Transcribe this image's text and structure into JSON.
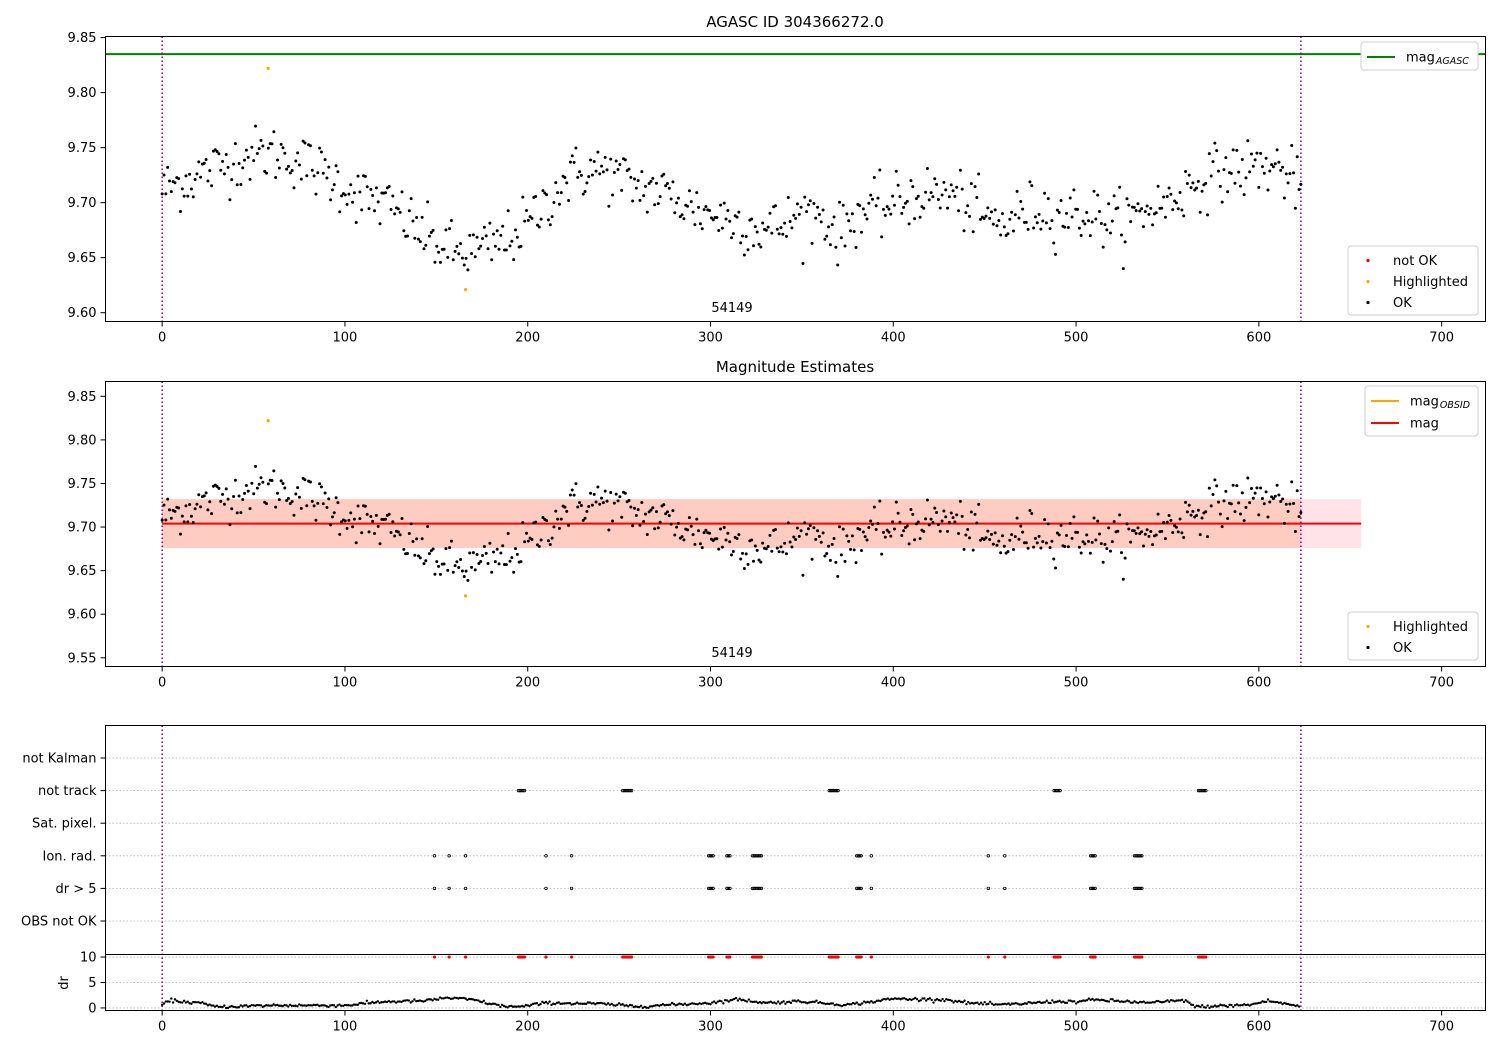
{
  "figure": {
    "panels": [
      {
        "id": "p1",
        "title": "AGASC ID 304366272.0",
        "obsid_label": "54149"
      },
      {
        "id": "p2",
        "title": "Magnitude Estimates",
        "obsid_label": "54149"
      },
      {
        "id": "p3",
        "title": ""
      }
    ],
    "legends": {
      "p1_line": [
        {
          "label": "mag",
          "sub": "AGASC",
          "color": "#008000",
          "kind": "line"
        }
      ],
      "p1_points": [
        {
          "label": "not OK",
          "color": "#ff0000",
          "kind": "dot"
        },
        {
          "label": "Highlighted",
          "color": "#ffa500",
          "kind": "dot"
        },
        {
          "label": "OK",
          "color": "#000000",
          "kind": "dot"
        }
      ],
      "p2_line": [
        {
          "label": "mag",
          "sub": "OBSID",
          "color": "#ffa500",
          "kind": "line"
        },
        {
          "label": "mag",
          "sub": "",
          "color": "#ff0000",
          "kind": "line"
        }
      ],
      "p2_points": [
        {
          "label": "Highlighted",
          "color": "#ffa500",
          "kind": "dot"
        },
        {
          "label": "OK",
          "color": "#000000",
          "kind": "dot"
        }
      ]
    },
    "colors": {
      "ok": "#000000",
      "highlighted": "#ffa500",
      "not_ok": "#ff0000",
      "mag_agasc": "#008000",
      "mag_obsid": "#ffa500",
      "mag": "#ff0000",
      "band_outer": "#ffc0cb",
      "band_inner": "#ffa07a",
      "obs_bounds": "#800080"
    }
  },
  "chart_data": [
    {
      "type": "scatter",
      "panel": "p1",
      "title": "AGASC ID 304366272.0",
      "xlim": [
        -31,
        724
      ],
      "ylim": [
        9.592,
        9.851
      ],
      "xticks": [
        0,
        100,
        200,
        300,
        400,
        500,
        600,
        700
      ],
      "yticks": [
        9.6,
        9.65,
        9.7,
        9.75,
        9.8,
        9.85
      ],
      "mag_agasc": 9.835,
      "obs_bounds": [
        0,
        623
      ],
      "obsid_label": "54149",
      "highlighted": [
        {
          "x": 58,
          "y": 9.822
        },
        {
          "x": 166,
          "y": 9.621
        }
      ],
      "ok_trend": {
        "x_start": 0,
        "x_end": 623,
        "n_points": 623,
        "knots": [
          [
            0,
            9.712
          ],
          [
            15,
            9.722
          ],
          [
            30,
            9.732
          ],
          [
            45,
            9.742
          ],
          [
            60,
            9.745
          ],
          [
            75,
            9.738
          ],
          [
            90,
            9.725
          ],
          [
            100,
            9.715
          ],
          [
            110,
            9.705
          ],
          [
            120,
            9.7
          ],
          [
            130,
            9.69
          ],
          [
            140,
            9.675
          ],
          [
            150,
            9.662
          ],
          [
            160,
            9.655
          ],
          [
            170,
            9.655
          ],
          [
            180,
            9.66
          ],
          [
            190,
            9.668
          ],
          [
            200,
            9.68
          ],
          [
            210,
            9.7
          ],
          [
            220,
            9.72
          ],
          [
            230,
            9.728
          ],
          [
            240,
            9.73
          ],
          [
            250,
            9.722
          ],
          [
            260,
            9.715
          ],
          [
            270,
            9.712
          ],
          [
            280,
            9.705
          ],
          [
            290,
            9.695
          ],
          [
            300,
            9.69
          ],
          [
            310,
            9.685
          ],
          [
            320,
            9.68
          ],
          [
            330,
            9.675
          ],
          [
            340,
            9.68
          ],
          [
            350,
            9.69
          ],
          [
            360,
            9.69
          ],
          [
            370,
            9.67
          ],
          [
            380,
            9.69
          ],
          [
            390,
            9.693
          ],
          [
            400,
            9.698
          ],
          [
            410,
            9.705
          ],
          [
            420,
            9.708
          ],
          [
            430,
            9.707
          ],
          [
            440,
            9.7
          ],
          [
            450,
            9.685
          ],
          [
            460,
            9.68
          ],
          [
            470,
            9.69
          ],
          [
            480,
            9.695
          ],
          [
            490,
            9.69
          ],
          [
            500,
            9.69
          ],
          [
            510,
            9.688
          ],
          [
            520,
            9.683
          ],
          [
            530,
            9.685
          ],
          [
            540,
            9.695
          ],
          [
            550,
            9.7
          ],
          [
            560,
            9.712
          ],
          [
            570,
            9.722
          ],
          [
            580,
            9.728
          ],
          [
            590,
            9.73
          ],
          [
            600,
            9.733
          ],
          [
            610,
            9.732
          ],
          [
            623,
            9.715
          ]
        ],
        "scatter": 0.013
      }
    },
    {
      "type": "scatter",
      "panel": "p2",
      "title": "Magnitude Estimates",
      "xlim": [
        -31,
        724
      ],
      "ylim": [
        9.54,
        9.867
      ],
      "xticks": [
        0,
        100,
        200,
        300,
        400,
        500,
        600,
        700
      ],
      "yticks": [
        9.55,
        9.6,
        9.65,
        9.7,
        9.75,
        9.8,
        9.85
      ],
      "mag": 9.704,
      "mag_obsid": 9.704,
      "band_outer": [
        9.676,
        9.732
      ],
      "band_inner": [
        9.676,
        9.732
      ],
      "band_x": [
        0,
        656
      ],
      "obs_bounds": [
        0,
        623
      ],
      "obsid_label": "54149",
      "highlighted": [
        {
          "x": 58,
          "y": 9.822
        },
        {
          "x": 166,
          "y": 9.621
        }
      ],
      "ok_trend": "same as panel p1"
    },
    {
      "type": "scatter",
      "panel": "p3",
      "xlim": [
        -31,
        724
      ],
      "xticks": [
        0,
        100,
        200,
        300,
        400,
        500,
        600,
        700
      ],
      "flag_categories": [
        "not Kalman",
        "not track",
        "Sat. pixel.",
        "Ion. rad.",
        "dr > 5",
        "OBS not OK"
      ],
      "flags": {
        "not Kalman": [],
        "not track": [
          [
            195,
            199
          ],
          [
            252,
            257
          ],
          [
            365,
            370
          ],
          [
            488,
            492
          ],
          [
            567,
            571
          ]
        ],
        "Sat. pixel.": [],
        "Ion. rad.": [
          [
            149,
            149
          ],
          [
            157,
            157
          ],
          [
            166,
            166
          ],
          [
            210,
            210
          ],
          [
            224,
            224
          ],
          [
            299,
            302
          ],
          [
            309,
            311
          ],
          [
            323,
            328
          ],
          [
            380,
            383
          ],
          [
            388,
            388
          ],
          [
            452,
            452
          ],
          [
            461,
            461
          ],
          [
            508,
            511
          ],
          [
            532,
            536
          ]
        ],
        "dr > 5": [
          [
            149,
            149
          ],
          [
            157,
            157
          ],
          [
            166,
            166
          ],
          [
            210,
            210
          ],
          [
            224,
            224
          ],
          [
            299,
            302
          ],
          [
            309,
            311
          ],
          [
            323,
            328
          ],
          [
            380,
            383
          ],
          [
            388,
            388
          ],
          [
            452,
            452
          ],
          [
            461,
            461
          ],
          [
            508,
            511
          ],
          [
            532,
            536
          ]
        ],
        "OBS not OK": []
      },
      "dr": {
        "ylabel": "dr",
        "ylim": [
          -0.5,
          10.5
        ],
        "yticks": [
          0,
          5,
          10
        ],
        "not_ok_value": 10,
        "not_ok_x": [
          [
            149,
            149
          ],
          [
            157,
            157
          ],
          [
            166,
            166
          ],
          [
            195,
            199
          ],
          [
            210,
            210
          ],
          [
            224,
            224
          ],
          [
            252,
            257
          ],
          [
            299,
            302
          ],
          [
            309,
            311
          ],
          [
            323,
            328
          ],
          [
            365,
            370
          ],
          [
            380,
            383
          ],
          [
            388,
            388
          ],
          [
            452,
            452
          ],
          [
            461,
            461
          ],
          [
            488,
            492
          ],
          [
            508,
            511
          ],
          [
            532,
            536
          ],
          [
            567,
            571
          ]
        ],
        "trend": [
          [
            0,
            0.6
          ],
          [
            5,
            1.5
          ],
          [
            12,
            1.2
          ],
          [
            20,
            1.0
          ],
          [
            30,
            0.2
          ],
          [
            60,
            0.5
          ],
          [
            100,
            0.5
          ],
          [
            120,
            1.2
          ],
          [
            145,
            1.4
          ],
          [
            155,
            2.0
          ],
          [
            170,
            1.6
          ],
          [
            185,
            0.4
          ],
          [
            196,
            0.2
          ],
          [
            210,
            1.0
          ],
          [
            240,
            0.8
          ],
          [
            260,
            0.3
          ],
          [
            300,
            1.0
          ],
          [
            315,
            1.7
          ],
          [
            330,
            1.0
          ],
          [
            350,
            1.3
          ],
          [
            375,
            0.6
          ],
          [
            400,
            1.8
          ],
          [
            430,
            1.6
          ],
          [
            440,
            1.0
          ],
          [
            460,
            0.6
          ],
          [
            490,
            1.3
          ],
          [
            500,
            1.2
          ],
          [
            510,
            1.6
          ],
          [
            520,
            1.4
          ],
          [
            540,
            1.0
          ],
          [
            560,
            1.5
          ],
          [
            565,
            0.2
          ],
          [
            595,
            0.6
          ],
          [
            605,
            1.4
          ],
          [
            623,
            0.3
          ]
        ]
      }
    }
  ]
}
